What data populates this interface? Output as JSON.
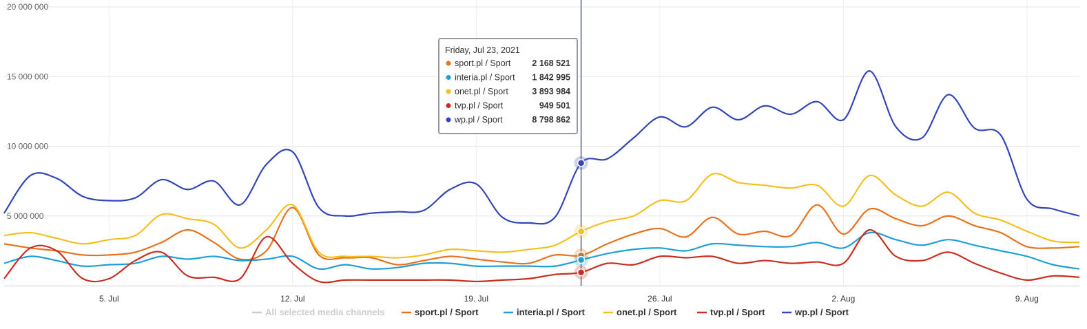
{
  "chart_data": {
    "type": "line",
    "y_ticks": [
      "20 000 000",
      "15 000 000",
      "10 000 000",
      "5 000 000"
    ],
    "ylim": [
      0,
      20000000
    ],
    "x_ticks": [
      "5. Jul",
      "12. Jul",
      "19. Jul",
      "26. Jul",
      "2. Aug",
      "9. Aug"
    ],
    "x_dates": [
      "2021-07-01",
      "2021-07-02",
      "2021-07-03",
      "2021-07-04",
      "2021-07-05",
      "2021-07-06",
      "2021-07-07",
      "2021-07-08",
      "2021-07-09",
      "2021-07-10",
      "2021-07-11",
      "2021-07-12",
      "2021-07-13",
      "2021-07-14",
      "2021-07-15",
      "2021-07-16",
      "2021-07-17",
      "2021-07-18",
      "2021-07-19",
      "2021-07-20",
      "2021-07-21",
      "2021-07-22",
      "2021-07-23",
      "2021-07-24",
      "2021-07-25",
      "2021-07-26",
      "2021-07-27",
      "2021-07-28",
      "2021-07-29",
      "2021-07-30",
      "2021-07-31",
      "2021-08-01",
      "2021-08-02",
      "2021-08-03",
      "2021-08-04",
      "2021-08-05",
      "2021-08-06",
      "2021-08-07",
      "2021-08-08",
      "2021-08-09",
      "2021-08-10",
      "2021-08-11"
    ],
    "series": [
      {
        "name": "sport.pl / Sport",
        "color": "#e8711c",
        "values": [
          3000000,
          2700000,
          2500000,
          2200000,
          2200000,
          2400000,
          3100000,
          4000000,
          3100000,
          1900000,
          2500000,
          5600000,
          2200000,
          2000000,
          2000000,
          1500000,
          1800000,
          2100000,
          1900000,
          1700000,
          1600000,
          2200000,
          2168521,
          3000000,
          3700000,
          4100000,
          3500000,
          4900000,
          3700000,
          3900000,
          3600000,
          5800000,
          3700000,
          5500000,
          4800000,
          4300000,
          5000000,
          4300000,
          3800000,
          2800000,
          2700000,
          2800000
        ]
      },
      {
        "name": "interia.pl / Sport",
        "color": "#1e9fd6",
        "values": [
          1600000,
          2100000,
          1800000,
          1400000,
          1500000,
          1600000,
          2100000,
          1900000,
          2100000,
          1800000,
          1900000,
          2100000,
          1200000,
          1500000,
          1200000,
          1300000,
          1600000,
          1600000,
          1400000,
          1400000,
          1400000,
          1400000,
          1842995,
          2300000,
          2600000,
          2700000,
          2500000,
          3000000,
          2900000,
          2800000,
          2800000,
          3100000,
          2700000,
          3800000,
          3300000,
          2900000,
          3300000,
          2900000,
          2500000,
          2100000,
          1500000,
          1200000
        ]
      },
      {
        "name": "onet.pl / Sport",
        "color": "#f4c021",
        "values": [
          3600000,
          3800000,
          3400000,
          3000000,
          3300000,
          3600000,
          5100000,
          4800000,
          4400000,
          2700000,
          4000000,
          5800000,
          2400000,
          2100000,
          2100000,
          2000000,
          2200000,
          2600000,
          2500000,
          2400000,
          2600000,
          2900000,
          3893984,
          4600000,
          5000000,
          6100000,
          6100000,
          8000000,
          7400000,
          7200000,
          7000000,
          7200000,
          5700000,
          7900000,
          6500000,
          5700000,
          6700000,
          5200000,
          4700000,
          3900000,
          3200000,
          3100000
        ]
      },
      {
        "name": "tvp.pl / Sport",
        "color": "#c82f21",
        "values": [
          500000,
          2700000,
          2500000,
          500000,
          500000,
          1800000,
          2400000,
          700000,
          600000,
          500000,
          3500000,
          1600000,
          300000,
          400000,
          400000,
          400000,
          400000,
          400000,
          300000,
          400000,
          500000,
          800000,
          949501,
          1600000,
          1500000,
          2100000,
          2000000,
          2100000,
          1600000,
          1800000,
          1600000,
          1700000,
          1600000,
          4000000,
          2100000,
          1800000,
          2400000,
          1600000,
          900000,
          400000,
          700000,
          600000
        ]
      },
      {
        "name": "wp.pl / Sport",
        "color": "#3346b8",
        "values": [
          5200000,
          7900000,
          7700000,
          6400000,
          6100000,
          6300000,
          7600000,
          6900000,
          7500000,
          5800000,
          8700000,
          9600000,
          5600000,
          5000000,
          5200000,
          5300000,
          5400000,
          6900000,
          7300000,
          4900000,
          4500000,
          4900000,
          8798862,
          9100000,
          10600000,
          12100000,
          11400000,
          12800000,
          11900000,
          12900000,
          12300000,
          13200000,
          11900000,
          15400000,
          11400000,
          10600000,
          13700000,
          11300000,
          10800000,
          6200000,
          5500000,
          5000000
        ]
      }
    ],
    "legend": {
      "placement": "bottom",
      "items": [
        "All selected media channels",
        "sport.pl / Sport",
        "interia.pl / Sport",
        "onet.pl / Sport",
        "tvp.pl / Sport",
        "wp.pl / Sport"
      ]
    },
    "tooltip": {
      "title": "Friday, Jul 23, 2021",
      "rows": [
        {
          "label": "sport.pl / Sport",
          "value": "2 168 521",
          "color": "#e8711c"
        },
        {
          "label": "interia.pl / Sport",
          "value": "1 842 995",
          "color": "#1e9fd6"
        },
        {
          "label": "onet.pl / Sport",
          "value": "3 893 984",
          "color": "#f4c021"
        },
        {
          "label": "tvp.pl / Sport",
          "value": "949 501",
          "color": "#c82f21"
        },
        {
          "label": "wp.pl / Sport",
          "value": "8 798 862",
          "color": "#3346b8"
        }
      ]
    },
    "grid": true
  }
}
